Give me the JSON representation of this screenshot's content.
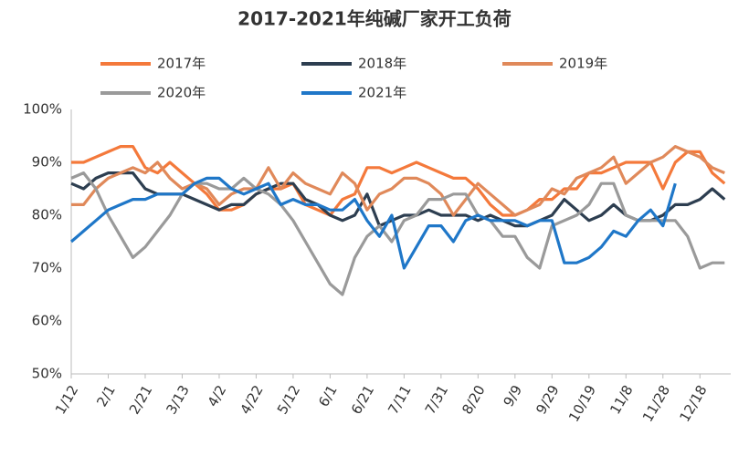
{
  "chart_data": {
    "type": "line",
    "title": "2017-2021年纯碱厂家开工负荷",
    "categories": [
      "1/12",
      null,
      null,
      "2/1",
      null,
      null,
      "2/21",
      null,
      null,
      "3/13",
      null,
      null,
      "4/2",
      null,
      null,
      "4/22",
      null,
      null,
      "5/12",
      null,
      null,
      "6/1",
      null,
      null,
      "6/21",
      null,
      null,
      "7/11",
      null,
      null,
      "7/31",
      null,
      null,
      "8/20",
      null,
      null,
      "9/9",
      null,
      null,
      "9/29",
      null,
      null,
      "10/19",
      null,
      null,
      "11/8",
      null,
      null,
      "11/28",
      null,
      null,
      "12/18",
      null,
      null
    ],
    "series": [
      {
        "name": "2017年",
        "color": "#f4793b",
        "values": [
          90,
          90,
          91,
          92,
          93,
          93,
          89,
          88,
          90,
          88,
          86,
          84,
          81,
          81,
          82,
          84,
          85,
          85,
          86,
          82,
          81,
          80,
          83,
          84,
          89,
          89,
          88,
          89,
          90,
          89,
          88,
          87,
          87,
          85,
          82,
          80,
          80,
          81,
          83,
          83,
          85,
          85,
          88,
          88,
          89,
          90,
          90,
          90,
          85,
          90,
          92,
          92,
          88,
          86
        ]
      },
      {
        "name": "2018年",
        "color": "#2d3e50",
        "values": [
          86,
          85,
          87,
          88,
          88,
          88,
          85,
          84,
          84,
          84,
          83,
          82,
          81,
          82,
          82,
          84,
          85,
          86,
          86,
          83,
          82,
          80,
          79,
          80,
          84,
          78,
          79,
          80,
          80,
          81,
          80,
          80,
          80,
          79,
          80,
          79,
          78,
          78,
          79,
          80,
          83,
          81,
          79,
          80,
          82,
          80,
          79,
          79,
          80,
          82,
          82,
          83,
          85,
          83
        ]
      },
      {
        "name": "2019年",
        "color": "#e0895a",
        "values": [
          82,
          82,
          85,
          87,
          88,
          89,
          88,
          90,
          87,
          85,
          86,
          85,
          82,
          84,
          85,
          85,
          89,
          85,
          88,
          86,
          85,
          84,
          88,
          86,
          81,
          84,
          85,
          87,
          87,
          86,
          84,
          80,
          83,
          86,
          84,
          82,
          80,
          81,
          82,
          85,
          84,
          87,
          88,
          89,
          91,
          86,
          88,
          90,
          91,
          93,
          92,
          91,
          89,
          88
        ]
      },
      {
        "name": "2020年",
        "color": "#9a9a9a",
        "values": [
          87,
          88,
          85,
          80,
          76,
          72,
          74,
          77,
          80,
          84,
          86,
          86,
          85,
          85,
          87,
          85,
          84,
          82,
          79,
          75,
          71,
          67,
          65,
          72,
          76,
          78,
          75,
          79,
          80,
          83,
          83,
          84,
          84,
          80,
          79,
          76,
          76,
          72,
          70,
          78,
          79,
          80,
          82,
          86,
          86,
          80,
          79,
          79,
          79,
          79,
          76,
          70,
          71,
          71
        ]
      },
      {
        "name": "2021年",
        "color": "#1f77c8",
        "values": [
          75,
          77,
          79,
          81,
          82,
          83,
          83,
          84,
          84,
          84,
          86,
          87,
          87,
          85,
          84,
          85,
          86,
          82,
          83,
          82,
          82,
          81,
          81,
          83,
          79,
          76,
          80,
          70,
          74,
          78,
          78,
          75,
          79,
          80,
          79,
          79,
          79,
          78,
          79,
          79,
          71,
          71,
          72,
          74,
          77,
          76,
          79,
          81,
          78,
          86,
          null,
          null,
          null,
          null
        ]
      }
    ],
    "ylim": [
      50,
      100
    ],
    "yticks": [
      {
        "value": 50,
        "label": "50%"
      },
      {
        "value": 60,
        "label": "60%"
      },
      {
        "value": 70,
        "label": "70%"
      },
      {
        "value": 80,
        "label": "80%"
      },
      {
        "value": 90,
        "label": "90%"
      },
      {
        "value": 100,
        "label": "100%"
      }
    ]
  }
}
